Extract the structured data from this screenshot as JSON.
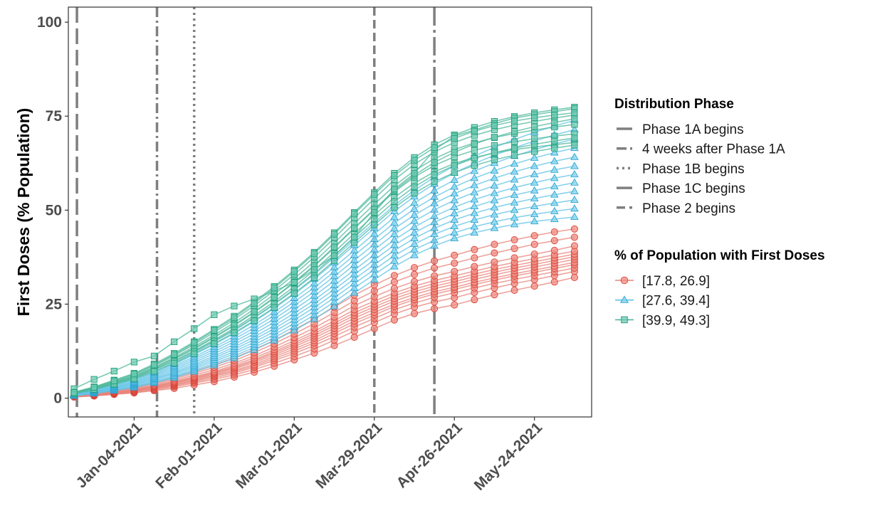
{
  "chart_data": {
    "type": "line",
    "ylabel": "First Doses (% Population)",
    "xlabel": "",
    "ylim": [
      -5,
      104
    ],
    "xlim": [
      "2020-12-12",
      "2021-06-13"
    ],
    "yticks": [
      0,
      25,
      50,
      75,
      100
    ],
    "ytick_labels": [
      "0",
      "25",
      "50",
      "75",
      "100"
    ],
    "xticks": [
      "2021-01-04",
      "2021-02-01",
      "2021-03-01",
      "2021-03-29",
      "2021-04-26",
      "2021-05-24"
    ],
    "xtick_labels": [
      "Jan-04-2021",
      "Feb-01-2021",
      "Mar-01-2021",
      "Mar-29-2021",
      "Apr-26-2021",
      "May-24-2021"
    ],
    "grid": false,
    "legend_position": "right",
    "dates": [
      "2020-12-14",
      "2020-12-21",
      "2020-12-28",
      "2021-01-04",
      "2021-01-11",
      "2021-01-18",
      "2021-01-25",
      "2021-02-01",
      "2021-02-08",
      "2021-02-15",
      "2021-02-22",
      "2021-03-01",
      "2021-03-08",
      "2021-03-15",
      "2021-03-22",
      "2021-03-29",
      "2021-04-05",
      "2021-04-12",
      "2021-04-19",
      "2021-04-26",
      "2021-05-03",
      "2021-05-10",
      "2021-05-17",
      "2021-05-24",
      "2021-05-31",
      "2021-06-07"
    ],
    "phase_legend": {
      "title": "Distribution Phase",
      "items": [
        {
          "label": "Phase 1A begins",
          "date": "2020-12-15",
          "dash": "22,8"
        },
        {
          "label": "4 weeks after Phase 1A",
          "date": "2021-01-12",
          "dash": "14,5,3,5"
        },
        {
          "label": "Phase 1B begins",
          "date": "2021-01-25",
          "dash": "3,5"
        },
        {
          "label": "Phase 1C begins",
          "date": "2021-04-19",
          "dash": "26,6,4,6"
        },
        {
          "label": "Phase 2 begins",
          "date": "2021-03-29",
          "dash": "12,6"
        }
      ]
    },
    "group_legend": {
      "title": "% of Population with First Doses",
      "items": [
        {
          "label": "[17.8, 26.9]",
          "shape": "circle",
          "fill": "#f08b80",
          "stroke": "#d9463b",
          "line": "#e8837a"
        },
        {
          "label": "[27.6, 39.4]",
          "shape": "triangle",
          "fill": "#7fd3ee",
          "stroke": "#2fa3d1",
          "line": "#62c3e6"
        },
        {
          "label": "[39.9, 49.3]",
          "shape": "square",
          "fill": "#6fcab3",
          "stroke": "#1b9e77",
          "line": "#4fb89c"
        }
      ]
    },
    "series": [
      {
        "name": "",
        "group": 0,
        "values": [
          0.3,
          0.6,
          1.0,
          1.4,
          2.0,
          2.6,
          3.5,
          4.4,
          5.6,
          6.9,
          8.5,
          10.2,
          12.0,
          14.0,
          16.2,
          18.5,
          20.8,
          22.5,
          23.8,
          24.8,
          26.2,
          27.5,
          28.7,
          29.8,
          30.9,
          32.1
        ]
      },
      {
        "name": "",
        "group": 0,
        "values": [
          0.3,
          0.6,
          1.1,
          1.5,
          2.2,
          3.0,
          4.0,
          5.0,
          6.2,
          7.6,
          9.3,
          11.1,
          13.1,
          15.4,
          17.8,
          20.1,
          22.4,
          24.2,
          25.6,
          26.7,
          28.1,
          29.3,
          30.5,
          31.5,
          32.6,
          33.7
        ]
      },
      {
        "name": "",
        "group": 0,
        "values": [
          0.4,
          0.7,
          1.2,
          1.7,
          2.4,
          3.3,
          4.3,
          5.4,
          6.7,
          8.2,
          10.0,
          11.9,
          14.0,
          16.4,
          18.9,
          21.2,
          23.5,
          25.3,
          26.8,
          28.0,
          29.3,
          30.5,
          31.6,
          32.6,
          33.6,
          34.6
        ]
      },
      {
        "name": "",
        "group": 0,
        "values": [
          0.4,
          0.8,
          1.3,
          1.8,
          2.6,
          3.5,
          4.6,
          5.8,
          7.1,
          8.6,
          10.5,
          12.5,
          14.7,
          17.2,
          19.8,
          22.1,
          24.4,
          26.2,
          27.7,
          28.9,
          30.2,
          31.4,
          32.5,
          33.5,
          34.5,
          35.5
        ]
      },
      {
        "name": "",
        "group": 0,
        "values": [
          0.4,
          0.8,
          1.3,
          1.9,
          2.7,
          3.7,
          4.8,
          6.0,
          7.4,
          9.0,
          11.0,
          13.1,
          15.3,
          17.9,
          20.5,
          22.8,
          25.0,
          26.8,
          28.3,
          29.5,
          30.8,
          32.0,
          33.1,
          34.1,
          35.1,
          36.1
        ]
      },
      {
        "name": "",
        "group": 0,
        "values": [
          0.5,
          0.9,
          1.4,
          2.0,
          2.9,
          3.9,
          5.1,
          6.3,
          7.8,
          9.5,
          11.5,
          13.7,
          16.0,
          18.6,
          21.3,
          23.6,
          25.8,
          27.6,
          29.1,
          30.3,
          31.6,
          32.8,
          33.9,
          34.9,
          35.9,
          36.9
        ]
      },
      {
        "name": "",
        "group": 0,
        "values": [
          0.5,
          0.9,
          1.5,
          2.1,
          3.0,
          4.1,
          5.3,
          6.6,
          8.1,
          9.9,
          12.0,
          14.2,
          16.6,
          19.3,
          22.0,
          24.3,
          26.5,
          28.3,
          29.8,
          31.0,
          32.3,
          33.5,
          34.6,
          35.6,
          36.6,
          37.6
        ]
      },
      {
        "name": "",
        "group": 0,
        "values": [
          0.5,
          1.0,
          1.6,
          2.2,
          3.1,
          4.2,
          5.5,
          6.8,
          8.4,
          10.2,
          12.4,
          14.7,
          17.2,
          19.9,
          22.7,
          25.0,
          27.2,
          29.0,
          30.5,
          31.7,
          33.0,
          34.2,
          35.3,
          36.3,
          37.3,
          38.3
        ]
      },
      {
        "name": "",
        "group": 0,
        "values": [
          0.6,
          1.0,
          1.7,
          2.3,
          3.3,
          4.4,
          5.7,
          7.1,
          8.8,
          10.7,
          12.9,
          15.3,
          17.8,
          20.6,
          23.5,
          25.8,
          28.0,
          29.8,
          31.3,
          32.5,
          33.8,
          35.0,
          36.1,
          37.1,
          38.1,
          39.1
        ]
      },
      {
        "name": "",
        "group": 0,
        "values": [
          0.6,
          1.1,
          1.8,
          2.5,
          3.5,
          4.7,
          6.1,
          7.6,
          9.3,
          11.3,
          13.6,
          16.1,
          18.7,
          21.6,
          24.6,
          27.0,
          29.2,
          31.0,
          32.5,
          33.7,
          35.0,
          36.2,
          37.3,
          38.3,
          39.3,
          40.5
        ]
      },
      {
        "name": "",
        "group": 0,
        "values": [
          0.7,
          1.2,
          2.0,
          2.7,
          3.8,
          5.1,
          6.6,
          8.2,
          10.0,
          12.1,
          14.5,
          17.1,
          19.8,
          22.8,
          25.9,
          28.5,
          30.9,
          32.9,
          34.6,
          35.9,
          37.3,
          38.6,
          39.8,
          40.9,
          41.9,
          42.8
        ]
      },
      {
        "name": "",
        "group": 0,
        "values": [
          0.7,
          1.3,
          2.1,
          2.9,
          4.1,
          5.5,
          7.1,
          8.8,
          10.7,
          12.9,
          15.4,
          18.2,
          21.1,
          24.2,
          27.4,
          30.1,
          32.6,
          34.7,
          36.5,
          38.0,
          39.5,
          40.9,
          42.1,
          43.2,
          44.2,
          45.0
        ]
      },
      {
        "name": "",
        "group": 1,
        "values": [
          0.6,
          1.2,
          2.0,
          2.8,
          4.0,
          5.4,
          7.0,
          8.7,
          10.6,
          12.8,
          15.3,
          18.0,
          21.0,
          24.4,
          28.0,
          31.5,
          35.0,
          38.0,
          40.5,
          42.5,
          44.0,
          45.2,
          46.2,
          47.0,
          47.6,
          48.2
        ]
      },
      {
        "name": "",
        "group": 1,
        "values": [
          0.7,
          1.3,
          2.1,
          3.0,
          4.2,
          5.7,
          7.4,
          9.2,
          11.2,
          13.5,
          16.1,
          19.0,
          22.1,
          25.6,
          29.3,
          32.9,
          36.5,
          39.5,
          42.0,
          44.0,
          45.6,
          46.9,
          48.0,
          48.9,
          49.7,
          50.4
        ]
      },
      {
        "name": "",
        "group": 1,
        "values": [
          0.7,
          1.4,
          2.3,
          3.2,
          4.5,
          6.0,
          7.8,
          9.7,
          11.8,
          14.2,
          16.9,
          19.9,
          23.1,
          26.7,
          30.5,
          34.2,
          37.9,
          41.0,
          43.6,
          45.7,
          47.4,
          48.8,
          50.0,
          51.0,
          51.9,
          52.7
        ]
      },
      {
        "name": "",
        "group": 1,
        "values": [
          0.8,
          1.5,
          2.4,
          3.4,
          4.8,
          6.4,
          8.2,
          10.2,
          12.4,
          14.9,
          17.7,
          20.8,
          24.1,
          27.8,
          31.7,
          35.5,
          39.3,
          42.5,
          45.2,
          47.4,
          49.2,
          50.7,
          52.0,
          53.1,
          54.1,
          55.0
        ]
      },
      {
        "name": "",
        "group": 1,
        "values": [
          0.8,
          1.6,
          2.6,
          3.6,
          5.1,
          6.7,
          8.6,
          10.7,
          13.0,
          15.6,
          18.5,
          21.7,
          25.1,
          28.9,
          32.9,
          36.8,
          40.7,
          44.0,
          46.8,
          49.1,
          51.0,
          52.6,
          54.0,
          55.2,
          56.3,
          57.3
        ]
      },
      {
        "name": "",
        "group": 1,
        "values": [
          0.9,
          1.7,
          2.7,
          3.8,
          5.3,
          7.0,
          9.0,
          11.2,
          13.6,
          16.3,
          19.3,
          22.6,
          26.1,
          30.0,
          34.1,
          38.1,
          42.1,
          45.5,
          48.4,
          50.8,
          52.8,
          54.5,
          56.0,
          57.3,
          58.5,
          59.5
        ]
      },
      {
        "name": "",
        "group": 1,
        "values": [
          0.9,
          1.8,
          2.9,
          4.0,
          5.6,
          7.4,
          9.5,
          11.8,
          14.3,
          17.1,
          20.2,
          23.6,
          27.2,
          31.2,
          35.4,
          39.5,
          43.6,
          47.1,
          50.1,
          52.6,
          54.7,
          56.5,
          58.1,
          59.5,
          60.7,
          61.7
        ]
      },
      {
        "name": "",
        "group": 1,
        "values": [
          1.0,
          1.9,
          3.0,
          4.2,
          5.9,
          7.8,
          10.0,
          12.4,
          15.0,
          17.9,
          21.1,
          24.6,
          28.3,
          32.4,
          36.7,
          40.9,
          45.1,
          48.7,
          51.8,
          54.4,
          56.6,
          58.5,
          60.2,
          61.7,
          63.0,
          64.1
        ]
      },
      {
        "name": "",
        "group": 1,
        "values": [
          1.0,
          2.0,
          3.2,
          4.4,
          6.2,
          8.2,
          10.5,
          13.0,
          15.7,
          18.7,
          22.0,
          25.6,
          29.4,
          33.6,
          38.0,
          42.3,
          46.6,
          50.3,
          53.5,
          56.2,
          58.5,
          60.5,
          62.3,
          63.9,
          65.3,
          66.5
        ]
      },
      {
        "name": "",
        "group": 1,
        "values": [
          1.1,
          2.1,
          3.4,
          4.7,
          6.5,
          8.6,
          11.0,
          13.6,
          16.4,
          19.5,
          22.9,
          26.6,
          30.5,
          34.8,
          39.3,
          43.7,
          48.1,
          51.9,
          55.2,
          58.0,
          60.4,
          62.5,
          64.4,
          66.1,
          67.6,
          68.9
        ]
      },
      {
        "name": "",
        "group": 1,
        "values": [
          1.1,
          2.2,
          3.5,
          4.9,
          6.8,
          9.0,
          11.6,
          14.3,
          17.2,
          20.4,
          23.9,
          27.7,
          31.7,
          36.1,
          40.7,
          45.2,
          49.7,
          53.6,
          57.0,
          59.9,
          62.4,
          64.6,
          66.6,
          68.4,
          70.0,
          71.4
        ]
      },
      {
        "name": "",
        "group": 1,
        "values": [
          1.2,
          2.3,
          3.7,
          5.1,
          7.1,
          9.4,
          12.1,
          15.0,
          18.0,
          21.3,
          24.9,
          28.8,
          32.9,
          37.4,
          42.1,
          46.7,
          51.3,
          55.3,
          58.8,
          61.8,
          64.4,
          66.7,
          68.8,
          70.7,
          72.4,
          73.9
        ]
      },
      {
        "name": "",
        "group": 2,
        "values": [
          1.2,
          2.4,
          3.9,
          5.4,
          7.5,
          9.9,
          12.6,
          15.5,
          18.6,
          22.0,
          25.7,
          29.7,
          34.0,
          38.8,
          43.8,
          48.7,
          53.4,
          57.2,
          60.2,
          62.4,
          64.0,
          65.2,
          66.1,
          66.8,
          67.4,
          68.0
        ]
      },
      {
        "name": "",
        "group": 2,
        "values": [
          1.3,
          2.5,
          4.1,
          5.6,
          7.8,
          10.3,
          13.1,
          16.1,
          19.3,
          22.8,
          26.6,
          30.7,
          35.1,
          40.0,
          45.1,
          50.1,
          54.9,
          58.8,
          61.9,
          64.2,
          65.9,
          67.2,
          68.2,
          69.0,
          69.7,
          70.3
        ]
      },
      {
        "name": "",
        "group": 2,
        "values": [
          1.4,
          2.7,
          4.3,
          5.9,
          8.2,
          10.8,
          13.7,
          16.8,
          20.1,
          23.7,
          27.6,
          31.8,
          36.3,
          41.3,
          46.5,
          51.6,
          56.5,
          60.5,
          63.7,
          66.1,
          67.9,
          69.3,
          70.4,
          71.3,
          72.1,
          72.8
        ]
      },
      {
        "name": "",
        "group": 2,
        "values": [
          1.5,
          2.8,
          4.5,
          6.2,
          8.6,
          11.3,
          14.3,
          17.5,
          20.9,
          24.6,
          28.6,
          32.9,
          37.5,
          42.6,
          47.9,
          53.1,
          58.1,
          62.2,
          65.5,
          68.0,
          69.9,
          71.4,
          72.6,
          73.6,
          74.5,
          75.3
        ]
      },
      {
        "name": "",
        "group": 2,
        "values": [
          1.4,
          2.6,
          4.2,
          5.8,
          8.0,
          10.5,
          13.3,
          16.3,
          19.5,
          23.0,
          26.8,
          30.9,
          35.3,
          40.2,
          45.3,
          50.3,
          55.2,
          59.3,
          62.7,
          65.4,
          67.6,
          69.4,
          70.9,
          72.2,
          73.3,
          74.3
        ]
      },
      {
        "name": "",
        "group": 2,
        "values": [
          1.3,
          2.4,
          3.9,
          5.4,
          7.5,
          9.8,
          12.4,
          15.2,
          18.2,
          21.5,
          25.1,
          29.0,
          33.2,
          37.9,
          42.8,
          47.6,
          52.3,
          56.2,
          59.4,
          61.9,
          63.8,
          65.3,
          66.5,
          67.5,
          68.4,
          69.2
        ]
      },
      {
        "name": "",
        "group": 2,
        "values": [
          1.6,
          3.0,
          4.8,
          6.6,
          9.1,
          11.9,
          15.0,
          18.3,
          21.8,
          25.6,
          29.7,
          34.1,
          38.8,
          44.0,
          49.4,
          54.7,
          59.8,
          64.0,
          67.4,
          70.0,
          72.0,
          73.6,
          74.9,
          75.9,
          76.7,
          77.4
        ]
      },
      {
        "name": "",
        "group": 2,
        "values": [
          1.2,
          2.3,
          3.7,
          5.1,
          7.1,
          9.3,
          11.8,
          14.5,
          17.4,
          20.6,
          24.1,
          27.9,
          32.0,
          36.6,
          41.4,
          46.1,
          50.7,
          54.5,
          57.6,
          60.0,
          61.9,
          63.4,
          64.6,
          65.6,
          66.5,
          67.3
        ]
      },
      {
        "name": "",
        "group": 2,
        "values": [
          2.5,
          5.0,
          7.2,
          9.6,
          11.2,
          15.0,
          18.5,
          22.2,
          24.5,
          26.4,
          28.5,
          30.8,
          34.2,
          37.9,
          42.8,
          49.4,
          55.6,
          59.8,
          66.0,
          69.7,
          71.3,
          73.0,
          74.5,
          75.4,
          76.2,
          77.0
        ]
      },
      {
        "name": "",
        "group": 2,
        "values": [
          1.5,
          2.9,
          4.6,
          6.4,
          8.8,
          11.6,
          14.7,
          18.0,
          21.4,
          25.2,
          29.3,
          33.7,
          38.4,
          43.6,
          49.0,
          54.2,
          59.2,
          63.3,
          66.6,
          69.1,
          71.0,
          72.5,
          73.7,
          74.6,
          75.3,
          75.9
        ]
      }
    ]
  }
}
